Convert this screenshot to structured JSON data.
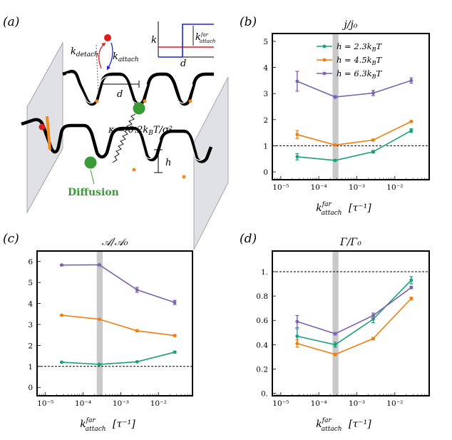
{
  "panels": {
    "a": "(a)",
    "b": "(b)",
    "c": "(c)",
    "d": "(d)"
  },
  "schematic": {
    "k_detach": "k",
    "k_detach_sub": "detach",
    "k_attach": "k",
    "k_attach_sub": "attach",
    "d": "d",
    "kappa": "κ = 0.2k",
    "kappa_sub": "B",
    "kappa_rest": "T/σ²",
    "h": "h",
    "diffusion": "Diffusion",
    "inset_ylabel": "k",
    "inset_xlabel": "d",
    "inset_k": "k",
    "inset_k_sup": "far",
    "inset_k_sub": "attach",
    "colors": {
      "blue": "#1f22d8",
      "red": "#e01b1b",
      "green": "#3a9a35",
      "orange": "#f08a1c",
      "grey": "#c0c5cc"
    }
  },
  "xlabel": {
    "k": "k",
    "sup": "far",
    "sub": "attach",
    "unit": "[τ⁻¹]"
  },
  "legend": [
    {
      "label": "h = 2.3k",
      "sub": "B",
      "rest": "T",
      "color": "#1aa07a"
    },
    {
      "label": "h = 4.5k",
      "sub": "B",
      "rest": "T",
      "color": "#f07f12"
    },
    {
      "label": "h = 6.3k",
      "sub": "B",
      "rest": "T",
      "color": "#7b62b0"
    }
  ],
  "chart_data": [
    {
      "panel": "b",
      "type": "line",
      "title": "j/j₀",
      "xscale": "log",
      "xlim": [
        6e-06,
        0.08
      ],
      "ylim": [
        -0.3,
        5.3
      ],
      "xticks": [
        {
          "v": 1e-05,
          "label": "10⁻⁵"
        },
        {
          "v": 0.0001,
          "label": "10⁻⁴"
        },
        {
          "v": 0.001,
          "label": "10⁻³"
        },
        {
          "v": 0.01,
          "label": "10⁻²"
        }
      ],
      "yticks": [
        {
          "v": 0,
          "label": "0"
        },
        {
          "v": 1,
          "label": "1"
        },
        {
          "v": 2,
          "label": "2"
        },
        {
          "v": 3,
          "label": "3"
        },
        {
          "v": 4,
          "label": "4"
        },
        {
          "v": 5,
          "label": "5"
        }
      ],
      "hline": 1,
      "band": [
        0.00023,
        0.00033
      ],
      "x": [
        2.7e-05,
        0.00027,
        0.0027,
        0.027
      ],
      "series": [
        {
          "name": "h = 2.3kBT",
          "color": "#1aa07a",
          "values": [
            0.58,
            0.44,
            0.77,
            1.58
          ],
          "errors": [
            0.12,
            0.03,
            0.05,
            0.07
          ]
        },
        {
          "name": "h = 4.5kBT",
          "color": "#f07f12",
          "values": [
            1.43,
            1.03,
            1.22,
            1.93
          ],
          "errors": [
            0.15,
            0.03,
            0.03,
            0.03
          ]
        },
        {
          "name": "h = 6.3kBT",
          "color": "#7b62b0",
          "values": [
            3.47,
            2.87,
            3.02,
            3.5
          ],
          "errors": [
            0.38,
            0.05,
            0.1,
            0.1
          ]
        }
      ]
    },
    {
      "panel": "c",
      "type": "line",
      "title": "𝒜/𝒜₀",
      "xscale": "log",
      "xlim": [
        6e-06,
        0.08
      ],
      "ylim": [
        -0.4,
        6.5
      ],
      "xticks": [
        {
          "v": 1e-05,
          "label": "10⁻⁵"
        },
        {
          "v": 0.0001,
          "label": "10⁻⁴"
        },
        {
          "v": 0.001,
          "label": "10⁻³"
        },
        {
          "v": 0.01,
          "label": "10⁻²"
        }
      ],
      "yticks": [
        {
          "v": 0,
          "label": "0"
        },
        {
          "v": 1,
          "label": "1"
        },
        {
          "v": 2,
          "label": "2"
        },
        {
          "v": 3,
          "label": "3"
        },
        {
          "v": 4,
          "label": "4"
        },
        {
          "v": 5,
          "label": "5"
        },
        {
          "v": 6,
          "label": "6"
        }
      ],
      "hline": 1,
      "band": [
        0.00023,
        0.00033
      ],
      "x": [
        2.7e-05,
        0.00027,
        0.0027,
        0.027
      ],
      "series": [
        {
          "name": "h = 2.3kBT",
          "color": "#1aa07a",
          "values": [
            1.2,
            1.1,
            1.22,
            1.68
          ],
          "errors": [
            0.02,
            0.02,
            0.02,
            0.04
          ]
        },
        {
          "name": "h = 4.5kBT",
          "color": "#f07f12",
          "values": [
            3.44,
            3.25,
            2.7,
            2.47
          ],
          "errors": [
            0.02,
            0.02,
            0.04,
            0.04
          ]
        },
        {
          "name": "h = 6.3kBT",
          "color": "#7b62b0",
          "values": [
            5.83,
            5.84,
            4.65,
            4.05
          ],
          "errors": [
            0.03,
            0.03,
            0.12,
            0.1
          ]
        }
      ]
    },
    {
      "panel": "d",
      "type": "line",
      "title": "Γ/Γ₀",
      "xscale": "log",
      "xlim": [
        6e-06,
        0.08
      ],
      "ylim": [
        -0.02,
        1.17
      ],
      "xticks": [
        {
          "v": 1e-05,
          "label": "10⁻⁵"
        },
        {
          "v": 0.0001,
          "label": "10⁻⁴"
        },
        {
          "v": 0.001,
          "label": "10⁻³"
        },
        {
          "v": 0.01,
          "label": "10⁻²"
        }
      ],
      "yticks": [
        {
          "v": 0,
          "label": "0."
        },
        {
          "v": 0.2,
          "label": "0.2"
        },
        {
          "v": 0.4,
          "label": "0.4"
        },
        {
          "v": 0.6,
          "label": "0.6"
        },
        {
          "v": 0.8,
          "label": "0.8"
        },
        {
          "v": 1,
          "label": "1."
        }
      ],
      "hline": 1,
      "band": [
        0.00023,
        0.00033
      ],
      "x": [
        2.7e-05,
        0.00027,
        0.0027,
        0.027
      ],
      "series": [
        {
          "name": "h = 2.3kBT",
          "color": "#1aa07a",
          "values": [
            0.47,
            0.4,
            0.61,
            0.93
          ],
          "errors": [
            0.06,
            0.02,
            0.03,
            0.03
          ]
        },
        {
          "name": "h = 4.5kBT",
          "color": "#f07f12",
          "values": [
            0.41,
            0.32,
            0.45,
            0.78
          ],
          "errors": [
            0.03,
            0.01,
            0.01,
            0.01
          ]
        },
        {
          "name": "h = 6.3kBT",
          "color": "#7b62b0",
          "values": [
            0.59,
            0.49,
            0.64,
            0.87
          ],
          "errors": [
            0.05,
            0.01,
            0.02,
            0.01
          ]
        }
      ]
    }
  ]
}
